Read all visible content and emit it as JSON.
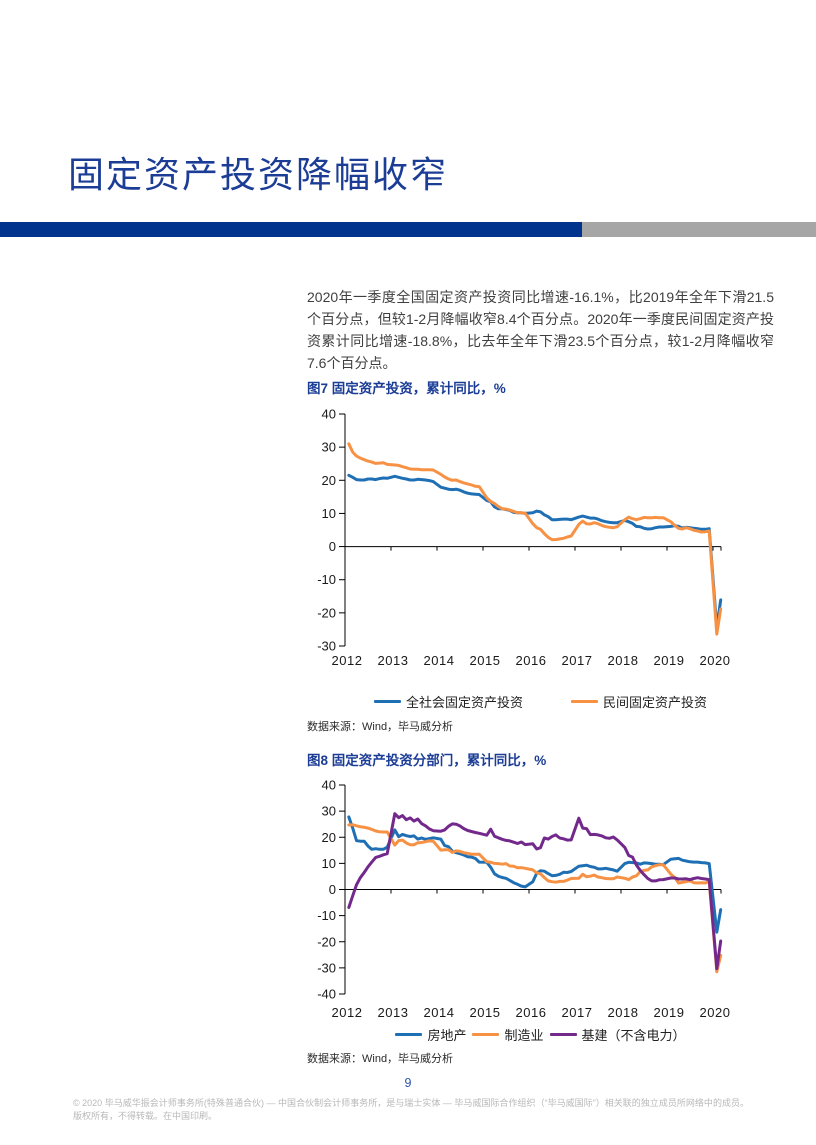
{
  "page": {
    "title": "固定资产投资降幅收窄",
    "accent_color": "#00338D",
    "bar_gray_color": "#A6A6A6"
  },
  "body": {
    "paragraph": "2020年一季度全国固定资产投资同比增速-16.1%，比2019年全年下滑21.5个百分点，但较1-2月降幅收窄8.4个百分点。2020年一季度民间固定资产投资累计同比增速-18.8%，比去年全年下滑23.5个百分点，较1-2月降幅收窄7.6个百分点。",
    "key_numbers": {
      "national_fai_q1_2020_yoy": -16.1,
      "vs_2019_full_year_pp": -21.5,
      "vs_jan_feb_improvement_pp": 8.4,
      "private_fai_q1_2020_yoy": -18.8,
      "private_vs_2019_full_year_pp": -23.5,
      "private_vs_jan_feb_improvement_pp": 7.6
    }
  },
  "chart_data": [
    {
      "type": "line",
      "title": "图7 固定资产投资，累计同比，%",
      "source": "数据来源：Wind，毕马威分析",
      "xlabel": "",
      "ylabel": "累计同比，%",
      "grid": false,
      "legend_position": "bottom",
      "x_start_year": 2012,
      "points_per_year": 11,
      "x_tick_labels": [
        "2012",
        "2013",
        "2014",
        "2015",
        "2016",
        "2017",
        "2018",
        "2019",
        "2020"
      ],
      "ylim": [
        -30,
        40
      ],
      "yticks": [
        40,
        30,
        20,
        10,
        0,
        -10,
        -20,
        -30
      ],
      "series": [
        {
          "name": "全社会固定资产投资",
          "color": "#1F6FB5",
          "values": [
            21.5,
            20.9,
            20.2,
            20.1,
            20.1,
            20.4,
            20.4,
            20.2,
            20.5,
            20.7,
            20.6,
            21.2,
            20.9,
            20.6,
            20.4,
            20.1,
            20.1,
            20.3,
            20.2,
            20.1,
            19.9,
            19.6,
            17.9,
            17.6,
            17.3,
            17.2,
            17.3,
            17.0,
            16.5,
            16.1,
            15.9,
            15.8,
            15.7,
            13.9,
            13.5,
            12.0,
            11.4,
            11.4,
            11.2,
            10.9,
            10.3,
            10.2,
            10.2,
            10.0,
            10.2,
            10.7,
            10.5,
            9.6,
            9.0,
            8.1,
            8.1,
            8.2,
            8.3,
            8.3,
            8.1,
            8.9,
            9.2,
            8.9,
            8.6,
            8.6,
            8.3,
            7.8,
            7.5,
            7.3,
            7.2,
            7.2,
            7.9,
            7.5,
            7.0,
            6.1,
            6.0,
            5.5,
            5.3,
            5.4,
            5.7,
            5.9,
            5.9,
            6.1,
            6.3,
            6.1,
            5.6,
            5.8,
            5.7,
            5.5,
            5.4,
            5.2,
            5.2,
            5.4,
            -24.5,
            -16.1
          ]
        },
        {
          "name": "民间固定资产投资",
          "color": "#F79245",
          "values": [
            31.0,
            28.5,
            27.3,
            26.7,
            26.2,
            25.8,
            25.5,
            25.1,
            25.2,
            25.3,
            24.8,
            24.6,
            24.5,
            24.1,
            23.8,
            23.4,
            23.3,
            23.3,
            23.2,
            23.2,
            23.2,
            23.1,
            21.8,
            21.0,
            20.4,
            20.0,
            20.1,
            19.6,
            19.2,
            18.9,
            18.6,
            18.2,
            18.1,
            14.7,
            13.6,
            13.0,
            12.1,
            11.4,
            11.3,
            11.0,
            10.6,
            10.2,
            10.2,
            10.1,
            6.9,
            5.7,
            5.2,
            3.9,
            2.8,
            2.1,
            2.1,
            2.3,
            2.5,
            2.9,
            3.2,
            6.7,
            7.7,
            6.9,
            6.8,
            7.2,
            6.9,
            6.4,
            6.0,
            5.8,
            5.7,
            6.0,
            8.1,
            8.9,
            8.4,
            8.1,
            8.4,
            8.8,
            8.7,
            8.7,
            8.8,
            8.7,
            8.7,
            7.5,
            6.4,
            5.5,
            5.3,
            5.7,
            5.4,
            4.9,
            4.7,
            4.4,
            4.5,
            4.7,
            -26.4,
            -18.8
          ]
        }
      ]
    },
    {
      "type": "line",
      "title": "图8 固定资产投资分部门，累计同比，%",
      "source": "数据来源：Wind，毕马威分析",
      "xlabel": "",
      "ylabel": "累计同比，%",
      "grid": false,
      "legend_position": "bottom",
      "x_start_year": 2012,
      "points_per_year": 11,
      "x_tick_labels": [
        "2012",
        "2013",
        "2014",
        "2015",
        "2016",
        "2017",
        "2018",
        "2019",
        "2020"
      ],
      "ylim": [
        -40,
        40
      ],
      "yticks": [
        40,
        30,
        20,
        10,
        0,
        -10,
        -20,
        -30,
        -40
      ],
      "series": [
        {
          "name": "房地产",
          "color": "#1F6FB5",
          "values": [
            27.8,
            23.5,
            18.7,
            18.5,
            18.5,
            16.6,
            15.4,
            15.6,
            15.4,
            15.4,
            16.2,
            22.8,
            20.2,
            21.1,
            20.6,
            20.3,
            20.5,
            19.3,
            19.7,
            19.2,
            19.5,
            19.8,
            19.3,
            16.8,
            16.4,
            14.7,
            14.1,
            13.7,
            13.2,
            12.5,
            12.4,
            11.9,
            10.5,
            10.4,
            8.5,
            6.0,
            5.1,
            4.6,
            4.3,
            3.5,
            2.6,
            2.0,
            1.3,
            1.0,
            3.0,
            6.2,
            7.2,
            7.0,
            6.1,
            5.3,
            5.4,
            5.8,
            6.6,
            6.5,
            6.9,
            8.9,
            9.1,
            9.3,
            8.8,
            8.5,
            7.9,
            7.9,
            8.1,
            7.8,
            7.5,
            7.0,
            9.9,
            10.4,
            10.3,
            10.2,
            9.7,
            10.2,
            10.1,
            9.9,
            9.7,
            9.7,
            9.5,
            11.6,
            11.8,
            11.9,
            11.2,
            10.9,
            10.6,
            10.5,
            10.5,
            10.3,
            10.2,
            9.9,
            -16.3,
            -7.7
          ]
        },
        {
          "name": "制造业",
          "color": "#F79245",
          "values": [
            24.7,
            24.8,
            24.4,
            24.0,
            23.8,
            23.5,
            23.0,
            22.4,
            22.1,
            22.0,
            22.0,
            17.0,
            18.7,
            18.9,
            17.8,
            17.1,
            17.1,
            17.9,
            18.0,
            18.3,
            18.6,
            18.5,
            15.1,
            15.2,
            15.2,
            14.2,
            14.8,
            14.6,
            14.1,
            13.8,
            13.5,
            13.5,
            13.5,
            10.6,
            10.4,
            10.0,
            9.9,
            9.7,
            9.9,
            9.0,
            8.9,
            8.3,
            8.4,
            8.1,
            7.5,
            6.4,
            6.0,
            4.6,
            3.3,
            3.0,
            2.8,
            3.1,
            3.1,
            3.6,
            4.2,
            4.3,
            5.8,
            4.9,
            5.1,
            5.5,
            4.8,
            4.5,
            4.2,
            4.1,
            4.1,
            4.8,
            4.3,
            3.8,
            4.8,
            5.2,
            6.8,
            7.3,
            7.5,
            8.7,
            9.1,
            9.5,
            9.5,
            5.9,
            4.6,
            2.5,
            2.7,
            3.0,
            3.3,
            2.6,
            2.5,
            2.6,
            2.5,
            3.1,
            -31.5,
            -25.2
          ]
        },
        {
          "name": "基建（不含电力）",
          "color": "#73298C",
          "values": [
            -6.9,
            -2.4,
            1.8,
            4.5,
            6.5,
            8.7,
            10.5,
            12.3,
            12.7,
            13.3,
            13.7,
            29.0,
            27.5,
            28.3,
            26.7,
            27.4,
            26.2,
            27.0,
            25.2,
            24.4,
            23.2,
            22.5,
            22.3,
            22.8,
            24.2,
            25.1,
            25.0,
            24.3,
            23.3,
            22.6,
            22.2,
            21.8,
            21.5,
            20.8,
            23.1,
            20.4,
            19.8,
            19.2,
            18.8,
            18.6,
            18.1,
            17.6,
            18.2,
            17.2,
            17.5,
            15.5,
            16.0,
            19.7,
            19.3,
            20.3,
            20.9,
            19.7,
            19.4,
            18.9,
            19.0,
            27.3,
            23.5,
            23.3,
            21.0,
            21.1,
            20.9,
            20.5,
            19.8,
            19.6,
            20.1,
            19.0,
            16.1,
            13.0,
            12.4,
            9.4,
            7.3,
            5.7,
            4.2,
            3.3,
            3.3,
            3.7,
            3.8,
            4.4,
            4.4,
            4.0,
            4.0,
            4.1,
            3.8,
            4.2,
            4.5,
            4.2,
            4.0,
            3.8,
            -30.3,
            -19.7
          ]
        }
      ]
    }
  ],
  "footer": {
    "page_number": "9",
    "copyright": "© 2020 毕马威华振会计师事务所(特殊普通合伙) — 中国合伙制会计师事务所，是与瑞士实体 — 毕马威国际合作组织（“毕马威国际”）相关联的独立成员所网络中的成员。版权所有，不得转载。在中国印刷。"
  }
}
